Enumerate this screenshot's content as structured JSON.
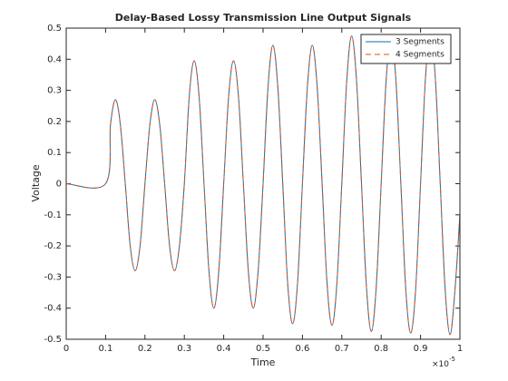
{
  "chart_data": {
    "type": "line",
    "title": "Delay-Based Lossy Transmission Line Output Signals",
    "x_label": "Time",
    "y_label": "Voltage",
    "x_multiplier": "×10",
    "x_multiplier_exponent": "-5",
    "x": [
      0,
      0.1,
      0.1125,
      0.125,
      0.1375,
      0.15,
      0.1625,
      0.175,
      0.1875,
      0.2,
      0.2125,
      0.225,
      0.2375,
      0.25,
      0.2625,
      0.275,
      0.2875,
      0.3,
      0.3125,
      0.325,
      0.3375,
      0.35,
      0.3625,
      0.375,
      0.3875,
      0.4,
      0.4125,
      0.425,
      0.4375,
      0.45,
      0.4625,
      0.475,
      0.4875,
      0.5,
      0.5125,
      0.525,
      0.5375,
      0.55,
      0.5625,
      0.575,
      0.5875,
      0.6,
      0.6125,
      0.625,
      0.6375,
      0.65,
      0.6625,
      0.675,
      0.6875,
      0.7,
      0.7125,
      0.725,
      0.7375,
      0.75,
      0.7625,
      0.775,
      0.7875,
      0.8,
      0.8125,
      0.825,
      0.8375,
      0.85,
      0.8625,
      0.875,
      0.8875,
      0.9,
      0.9125,
      0.925,
      0.9375,
      0.95,
      0.9625,
      0.975,
      0.9875,
      1.0
    ],
    "series": [
      {
        "name": "3 Segments",
        "color": "#0072bd",
        "linestyle": "solid",
        "values": [
          0,
          0,
          0.19,
          0.27,
          0.19,
          0,
          -0.2,
          -0.28,
          -0.2,
          0,
          0.19,
          0.27,
          0.19,
          0,
          -0.2,
          -0.28,
          -0.2,
          0,
          0.28,
          0.395,
          0.28,
          0,
          -0.28,
          -0.4,
          -0.28,
          0,
          0.28,
          0.395,
          0.28,
          0,
          -0.28,
          -0.4,
          -0.28,
          0,
          0.31,
          0.445,
          0.31,
          0,
          -0.32,
          -0.45,
          -0.32,
          0,
          0.31,
          0.445,
          0.31,
          0,
          -0.32,
          -0.455,
          -0.32,
          0,
          0.33,
          0.475,
          0.33,
          0,
          -0.33,
          -0.475,
          -0.33,
          0,
          0.33,
          0.475,
          0.33,
          0,
          -0.34,
          -0.48,
          -0.34,
          0,
          0.34,
          0.48,
          0.34,
          0,
          -0.34,
          -0.485,
          -0.34,
          -0.1
        ]
      },
      {
        "name": "4 Segments",
        "color": "#d95319",
        "linestyle": "dashed",
        "values": [
          0,
          0,
          0.19,
          0.27,
          0.19,
          0,
          -0.2,
          -0.28,
          -0.2,
          0,
          0.19,
          0.27,
          0.19,
          0,
          -0.2,
          -0.28,
          -0.2,
          0,
          0.28,
          0.395,
          0.28,
          0,
          -0.28,
          -0.4,
          -0.28,
          0,
          0.28,
          0.395,
          0.28,
          0,
          -0.28,
          -0.4,
          -0.28,
          0,
          0.31,
          0.445,
          0.31,
          0,
          -0.32,
          -0.45,
          -0.32,
          0,
          0.31,
          0.445,
          0.31,
          0,
          -0.32,
          -0.455,
          -0.32,
          0,
          0.33,
          0.475,
          0.33,
          0,
          -0.33,
          -0.475,
          -0.33,
          0,
          0.33,
          0.475,
          0.33,
          0,
          -0.34,
          -0.48,
          -0.34,
          0,
          0.34,
          0.48,
          0.34,
          0,
          -0.34,
          -0.485,
          -0.34,
          -0.1
        ]
      }
    ],
    "xlim": [
      0,
      1
    ],
    "xticks": [
      0,
      0.1,
      0.2,
      0.3,
      0.4,
      0.5,
      0.6,
      0.7,
      0.8,
      0.9,
      1
    ],
    "ylim": [
      -0.5,
      0.5
    ],
    "yticks": [
      -0.5,
      -0.4,
      -0.3,
      -0.2,
      -0.1,
      0,
      0.1,
      0.2,
      0.3,
      0.4,
      0.5
    ],
    "grid": false,
    "legend_position": "northeast"
  }
}
